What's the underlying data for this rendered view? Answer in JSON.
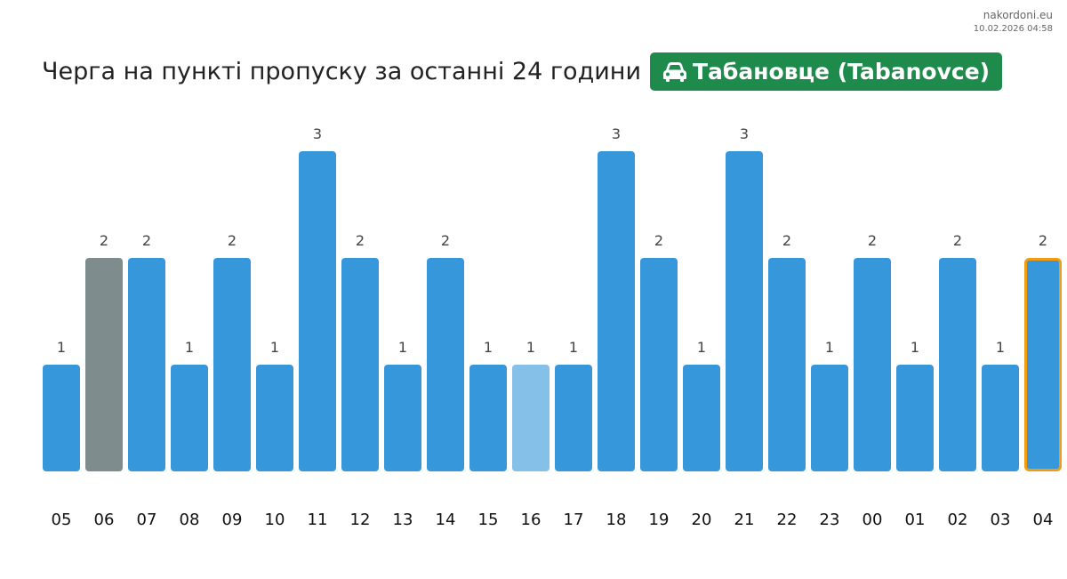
{
  "site": {
    "name": "nakordoni.eu",
    "date": "10.02.2026 04:58"
  },
  "header": {
    "title": "Черга на пункті пропуску за останні 24 години",
    "checkpoint": "Табановце (Tabanovce)",
    "checkpoint_icon": "car-icon",
    "checkpoint_color": "#1e8a4c"
  },
  "chart_data": {
    "type": "bar",
    "categories": [
      "05",
      "06",
      "07",
      "08",
      "09",
      "10",
      "11",
      "12",
      "13",
      "14",
      "15",
      "16",
      "17",
      "18",
      "19",
      "20",
      "21",
      "22",
      "23",
      "00",
      "01",
      "02",
      "03",
      "04"
    ],
    "values": [
      1,
      2,
      2,
      1,
      2,
      1,
      3,
      2,
      1,
      2,
      1,
      1,
      1,
      3,
      2,
      1,
      3,
      2,
      1,
      2,
      1,
      2,
      1,
      2
    ],
    "ylim": [
      0,
      3
    ],
    "grid": false,
    "colors": {
      "default": "#3797db",
      "highlight_gray": "#7f8c8d",
      "light": "#85c0e8",
      "current_outline": "#f39c12"
    },
    "bar_styles": [
      "default",
      "gray",
      "default",
      "default",
      "default",
      "default",
      "default",
      "default",
      "default",
      "default",
      "default",
      "light",
      "default",
      "default",
      "default",
      "default",
      "default",
      "default",
      "default",
      "default",
      "default",
      "default",
      "default",
      "current"
    ]
  }
}
